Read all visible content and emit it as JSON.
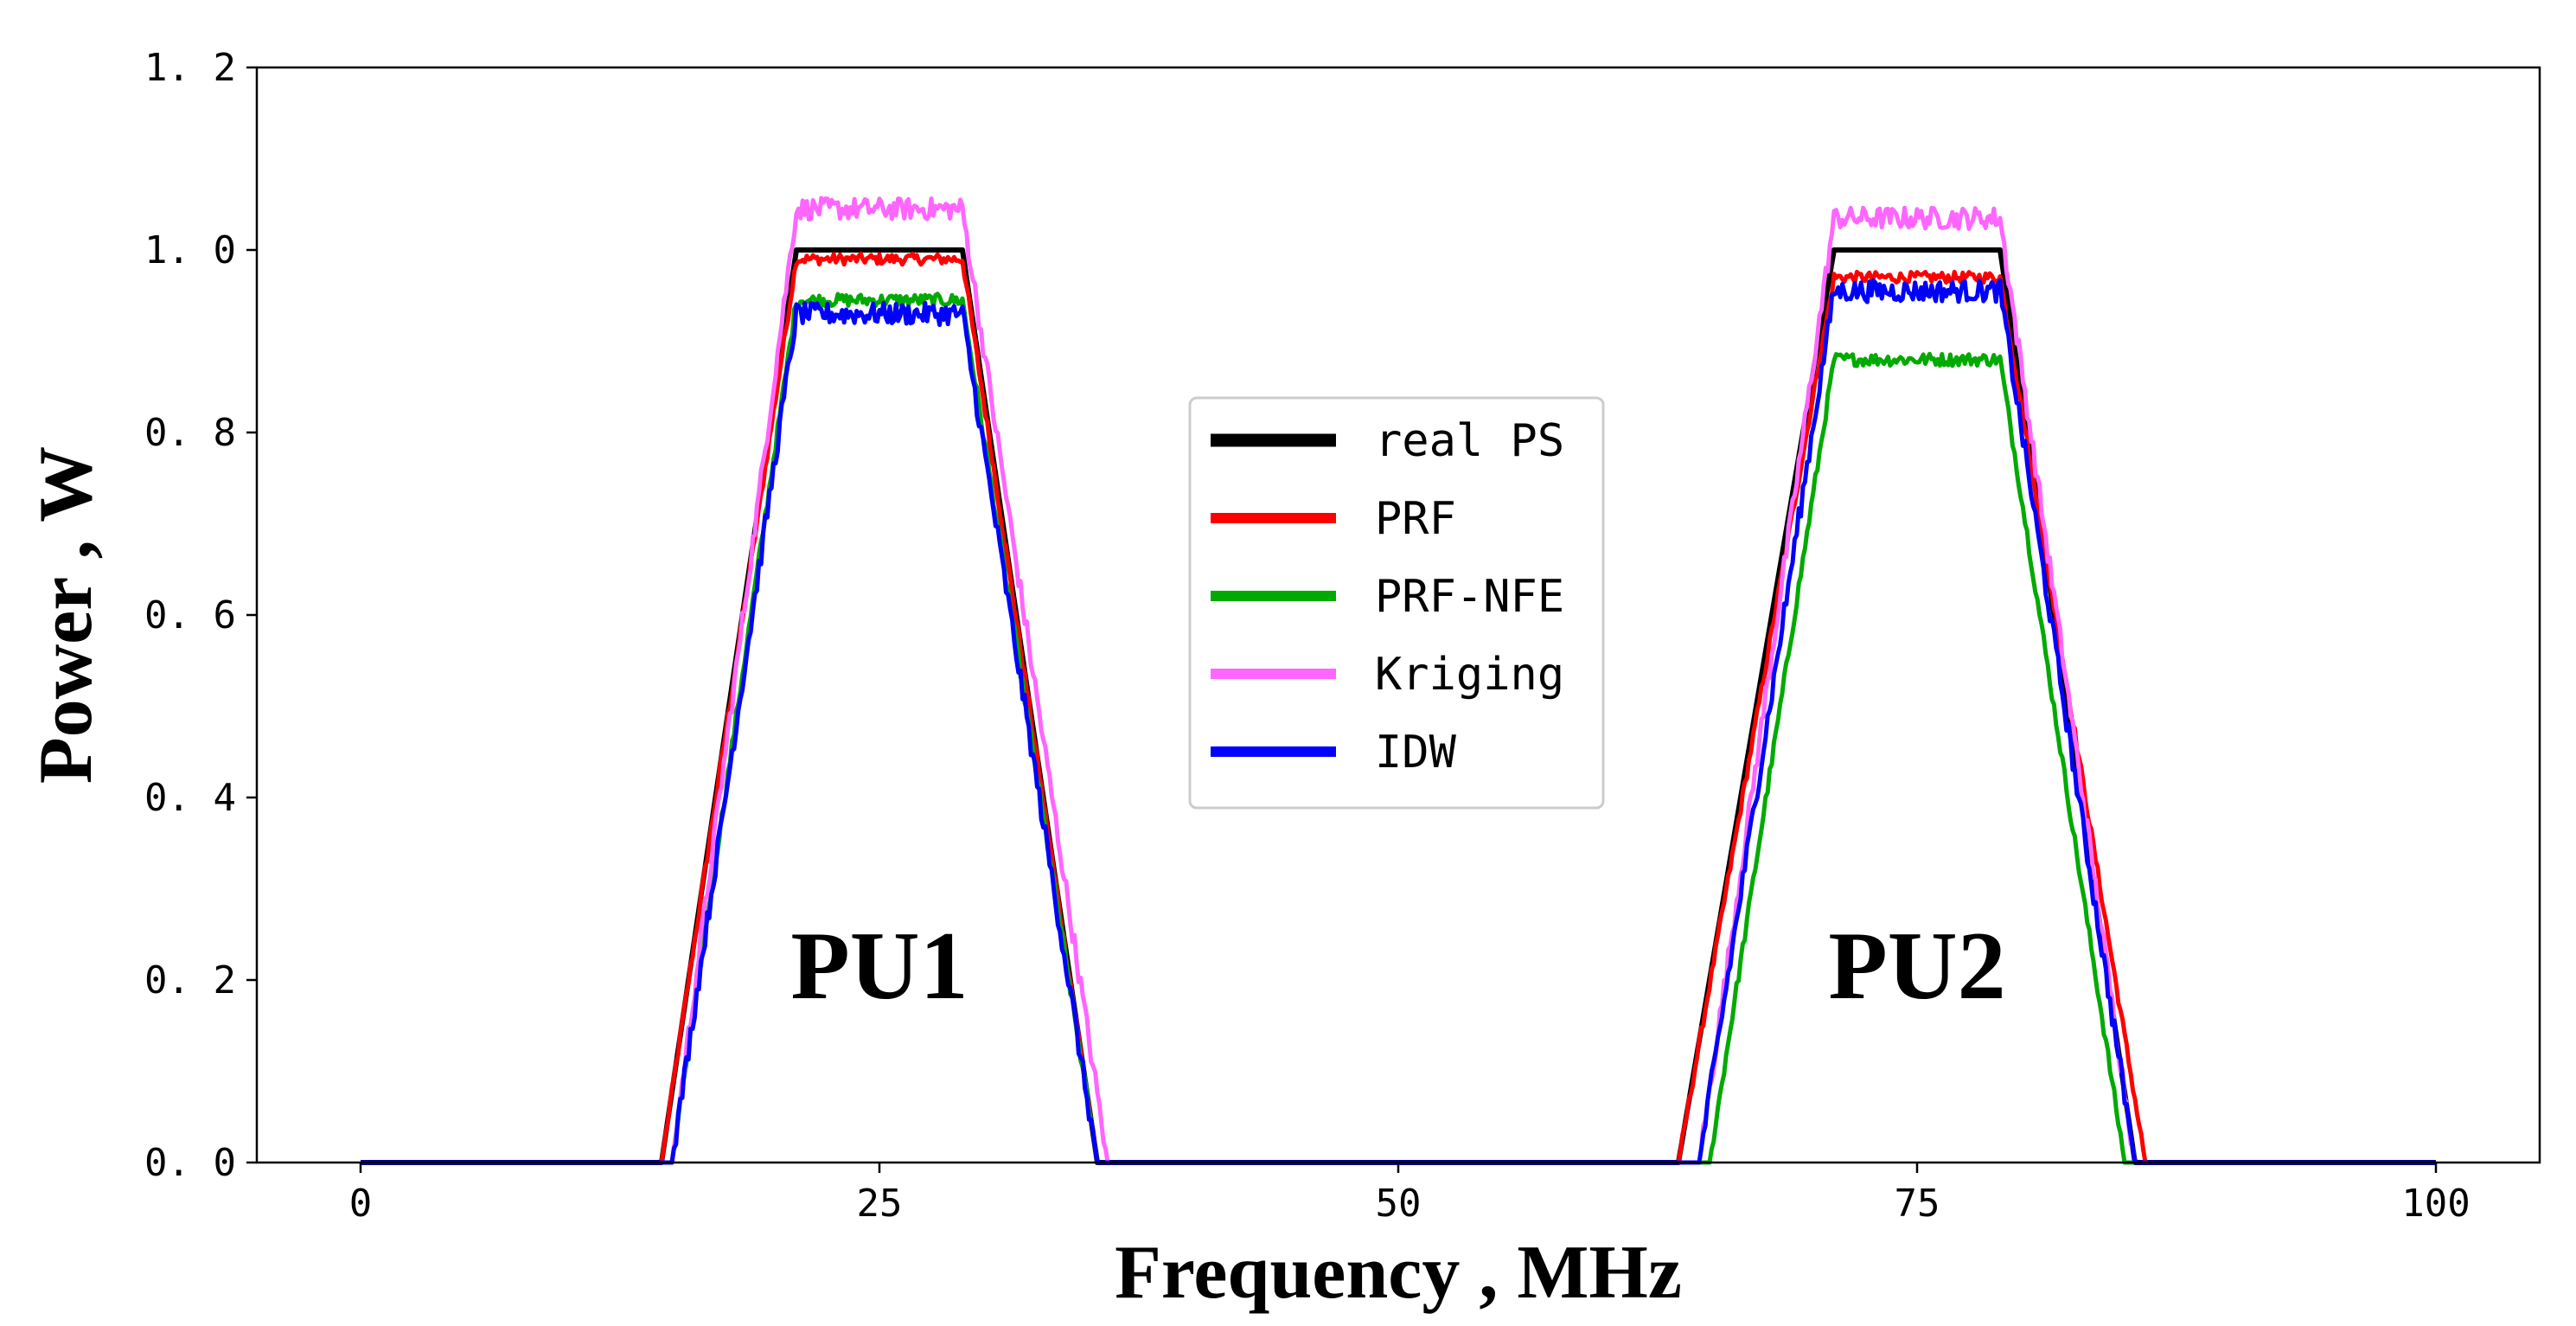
{
  "chart_data": {
    "type": "line",
    "title": "",
    "xlabel": "Frequency , MHz",
    "ylabel": "Power , W",
    "xlim": [
      -5,
      105
    ],
    "ylim": [
      0,
      1.2
    ],
    "xticks": [
      0,
      25,
      50,
      75,
      100
    ],
    "xtick_labels": [
      "0",
      "25",
      "50",
      "75",
      "100"
    ],
    "yticks": [
      0.0,
      0.2,
      0.4,
      0.6,
      0.8,
      1.0,
      1.2
    ],
    "ytick_labels": [
      "0. 0",
      "0. 2",
      "0. 4",
      "0. 6",
      "0. 8",
      "1. 0",
      "1. 2"
    ],
    "grid": false,
    "legend_position": "center",
    "annotations": [
      {
        "text": "PU1",
        "x": 25,
        "y": 0.18
      },
      {
        "text": "PU2",
        "x": 75,
        "y": 0.18
      }
    ],
    "series": [
      {
        "name": "real PS",
        "color": "#000000",
        "noise": 0.0,
        "x": [
          0,
          14.5,
          21,
          29,
          35.5,
          63.5,
          71,
          79,
          85.5,
          100
        ],
        "y": [
          0,
          0,
          1.0,
          1.0,
          0,
          0,
          1.0,
          1.0,
          0,
          0
        ]
      },
      {
        "name": "PRF",
        "color": "#ff0000",
        "noise": 0.006,
        "x": [
          0,
          14.5,
          21,
          29,
          35.5,
          63.5,
          71,
          79,
          86.0,
          100
        ],
        "y": [
          0,
          0,
          0.99,
          0.99,
          0,
          0,
          0.97,
          0.97,
          0,
          0
        ]
      },
      {
        "name": "PRF-NFE",
        "color": "#00aa00",
        "noise": 0.007,
        "x": [
          0,
          15.0,
          21,
          29,
          35.5,
          65.0,
          71,
          79,
          85.0,
          100
        ],
        "y": [
          0,
          0,
          0.945,
          0.945,
          0,
          0,
          0.88,
          0.88,
          0,
          0
        ]
      },
      {
        "name": "Kriging",
        "color": "#ff66ff",
        "noise": 0.012,
        "x": [
          0,
          15.0,
          21,
          29,
          36.0,
          64.5,
          71,
          79,
          85.5,
          100
        ],
        "y": [
          0,
          0,
          1.045,
          1.045,
          0,
          0,
          1.035,
          1.035,
          0,
          0
        ]
      },
      {
        "name": "IDW",
        "color": "#0000ff",
        "noise": 0.012,
        "x": [
          0,
          15.0,
          21,
          29,
          35.5,
          64.5,
          71,
          79,
          85.5,
          100
        ],
        "y": [
          0,
          0,
          0.93,
          0.93,
          0,
          0,
          0.955,
          0.955,
          0,
          0
        ]
      }
    ]
  }
}
